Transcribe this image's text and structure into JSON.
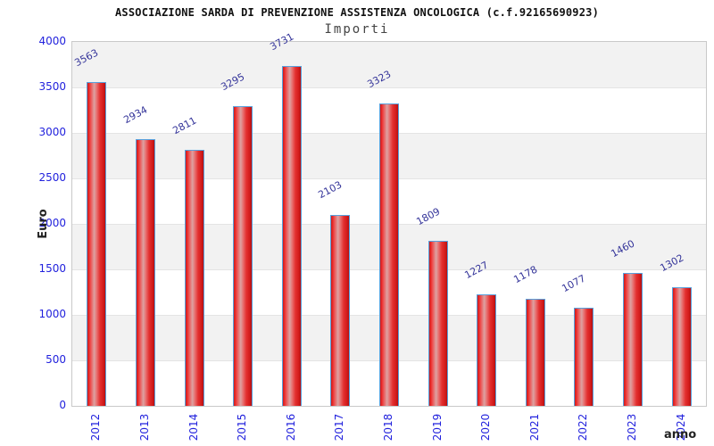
{
  "chart_data": {
    "type": "bar",
    "title": "ASSOCIAZIONE SARDA DI PREVENZIONE ASSISTENZA ONCOLOGICA (c.f.92165690923)",
    "subtitle": "Importi",
    "xlabel": "anno",
    "ylabel": "Euro",
    "categories": [
      "2012",
      "2013",
      "2014",
      "2015",
      "2016",
      "2017",
      "2018",
      "2019",
      "2020",
      "2021",
      "2022",
      "2023",
      "2024"
    ],
    "values": [
      3563,
      2934,
      2811,
      3295,
      3731,
      2103,
      3323,
      1809,
      1227,
      1178,
      1077,
      1460,
      1302
    ],
    "ylim": [
      0,
      4000
    ],
    "ytick_step": 500,
    "grid": "alternating-horizontal-bands",
    "legend_position": "none",
    "colors": {
      "bar_fill_main": "#e33030",
      "bar_fill_highlight": "#dda2a2",
      "bar_edge": "#58a0dc",
      "axis_tick_label": "#2222dd",
      "value_label": "#333399",
      "band_gray": "#f2f2f2",
      "band_white": "#ffffff",
      "plot_border": "#c9c9c9",
      "title": "#111111",
      "subtitle": "#444444"
    }
  }
}
